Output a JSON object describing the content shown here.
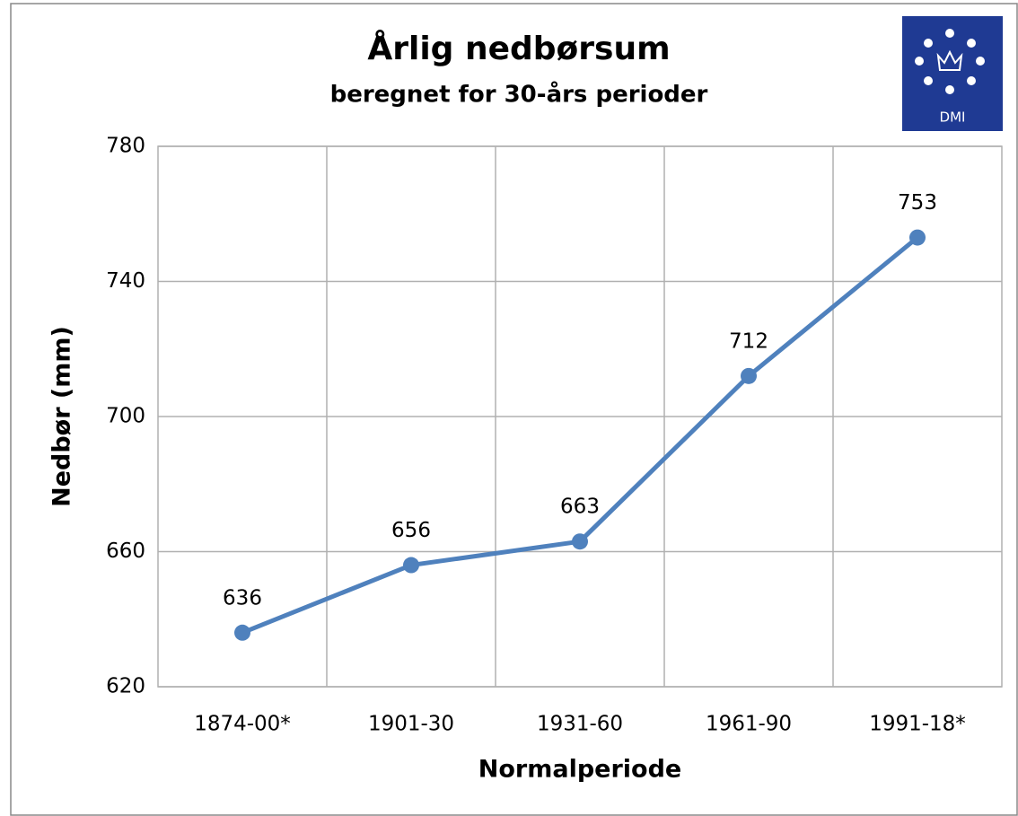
{
  "chart_data": {
    "type": "line",
    "title": "Årlig nedbørsum",
    "subtitle": "beregnet for 30-års perioder",
    "logo": "DMI",
    "x_label": "Normalperiode",
    "y_label": "Nedbør (mm)",
    "categories": [
      "1874-00*",
      "1901-30",
      "1931-60",
      "1961-90",
      "1991-18*"
    ],
    "series": [
      {
        "name": "Nedbør",
        "color": "#4f81bd",
        "values": [
          636,
          656,
          663,
          712,
          753
        ]
      }
    ],
    "ylim": [
      620,
      780
    ],
    "yticks": [
      620,
      660,
      700,
      740,
      780
    ],
    "grid": true,
    "data_labels": true
  }
}
